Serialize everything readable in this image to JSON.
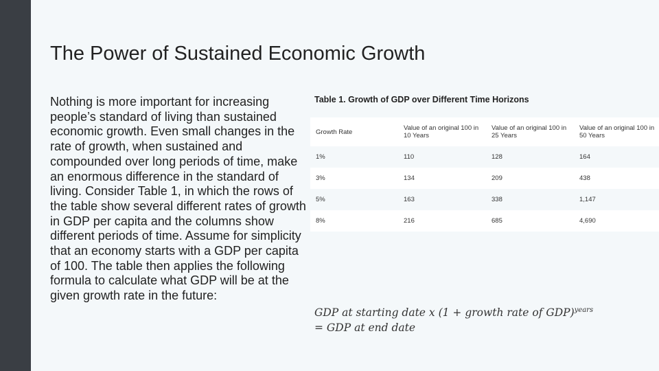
{
  "slide": {
    "title": "The Power of Sustained Economic Growth",
    "body": "Nothing is more important for increasing people’s standard of living than sustained economic growth. Even small changes in the rate of growth, when sustained and compounded over long periods of time, make an enormous difference in the standard of living. Consider Table 1, in which the rows of the table show several different rates of growth in GDP per capita and the columns show different periods of time. Assume for simplicity that an economy starts with a GDP per capita of 100. The table then applies the following formula to calculate what GDP will be at the given growth rate in the future:"
  },
  "table": {
    "caption": "Table 1. Growth of GDP over Different Time Horizons",
    "headers": [
      "Growth Rate",
      "Value of an original 100 in 10 Years",
      "Value of an original 100 in 25 Years",
      "Value of an original 100 in 50 Years"
    ],
    "rows": [
      [
        "1%",
        "110",
        "128",
        "164"
      ],
      [
        "3%",
        "134",
        "209",
        "438"
      ],
      [
        "5%",
        "163",
        "338",
        "1,147"
      ],
      [
        "8%",
        "216",
        "685",
        "4,690"
      ]
    ]
  },
  "formula": {
    "part1": "GDP at starting date x (1 + growth rate of GDP)",
    "exponent": "years",
    "part2": "= GDP at end date"
  },
  "colors": {
    "background": "#f4f8fa",
    "sidebar": "#3a3e44",
    "row_shade": "#ffffff",
    "text": "#222222"
  }
}
